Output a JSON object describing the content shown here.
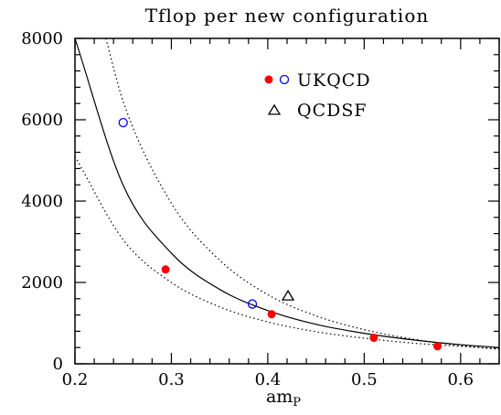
{
  "chart_data": {
    "type": "scatter",
    "title": "Tflop per new configuration",
    "xlabel_main": "am",
    "xlabel_sub": "P",
    "ylabel": "",
    "xlim": [
      0.2,
      0.64
    ],
    "ylim": [
      0,
      8000
    ],
    "x_ticks_major": [
      0.2,
      0.3,
      0.4,
      0.5,
      0.6
    ],
    "x_tick_labels": [
      "0.2",
      "0.3",
      "0.4",
      "0.5",
      "0.6"
    ],
    "y_ticks_major": [
      0,
      2000,
      4000,
      6000,
      8000
    ],
    "y_tick_labels": [
      "0",
      "2000",
      "4000",
      "6000",
      "8000"
    ],
    "x_minor_step": 0.02,
    "y_minor_step": 400,
    "grid": false,
    "legend_position": "top-right (inside plot)",
    "series": [
      {
        "name": "UKQCD",
        "marker": "filled-circle",
        "color": "#ff0000",
        "points": [
          {
            "x": 0.294,
            "y": 2320
          },
          {
            "x": 0.404,
            "y": 1220
          },
          {
            "x": 0.51,
            "y": 640
          },
          {
            "x": 0.576,
            "y": 430
          }
        ]
      },
      {
        "name": "UKQCD",
        "marker": "open-circle",
        "color": "#0000ff",
        "points": [
          {
            "x": 0.25,
            "y": 5930
          },
          {
            "x": 0.384,
            "y": 1470
          }
        ]
      },
      {
        "name": "QCDSF",
        "marker": "open-triangle",
        "color": "#000000",
        "points": [
          {
            "x": 0.421,
            "y": 1660
          }
        ]
      }
    ],
    "curves": [
      {
        "style": "solid",
        "color": "#000000",
        "points": [
          [
            0.2,
            8000
          ],
          [
            0.25,
            4390
          ],
          [
            0.3,
            2720
          ],
          [
            0.35,
            1830
          ],
          [
            0.4,
            1310
          ],
          [
            0.45,
            970
          ],
          [
            0.5,
            750
          ],
          [
            0.55,
            590
          ],
          [
            0.6,
            470
          ],
          [
            0.64,
            400
          ]
        ]
      },
      {
        "style": "dotted",
        "color": "#000000",
        "points": [
          [
            0.232,
            8000
          ],
          [
            0.25,
            6450
          ],
          [
            0.3,
            3950
          ],
          [
            0.35,
            2550
          ],
          [
            0.4,
            1700
          ],
          [
            0.45,
            1180
          ],
          [
            0.5,
            840
          ],
          [
            0.55,
            610
          ],
          [
            0.6,
            450
          ],
          [
            0.64,
            355
          ]
        ]
      },
      {
        "style": "dotted",
        "color": "#000000",
        "points": [
          [
            0.2,
            5100
          ],
          [
            0.25,
            3050
          ],
          [
            0.3,
            2000
          ],
          [
            0.35,
            1400
          ],
          [
            0.4,
            1030
          ],
          [
            0.45,
            790
          ],
          [
            0.5,
            630
          ],
          [
            0.55,
            510
          ],
          [
            0.6,
            430
          ],
          [
            0.64,
            370
          ]
        ]
      }
    ],
    "legend": [
      {
        "label": "UKQCD",
        "markers": [
          "filled-circle",
          "open-circle"
        ]
      },
      {
        "label": "QCDSF",
        "markers": [
          "open-triangle"
        ]
      }
    ]
  }
}
